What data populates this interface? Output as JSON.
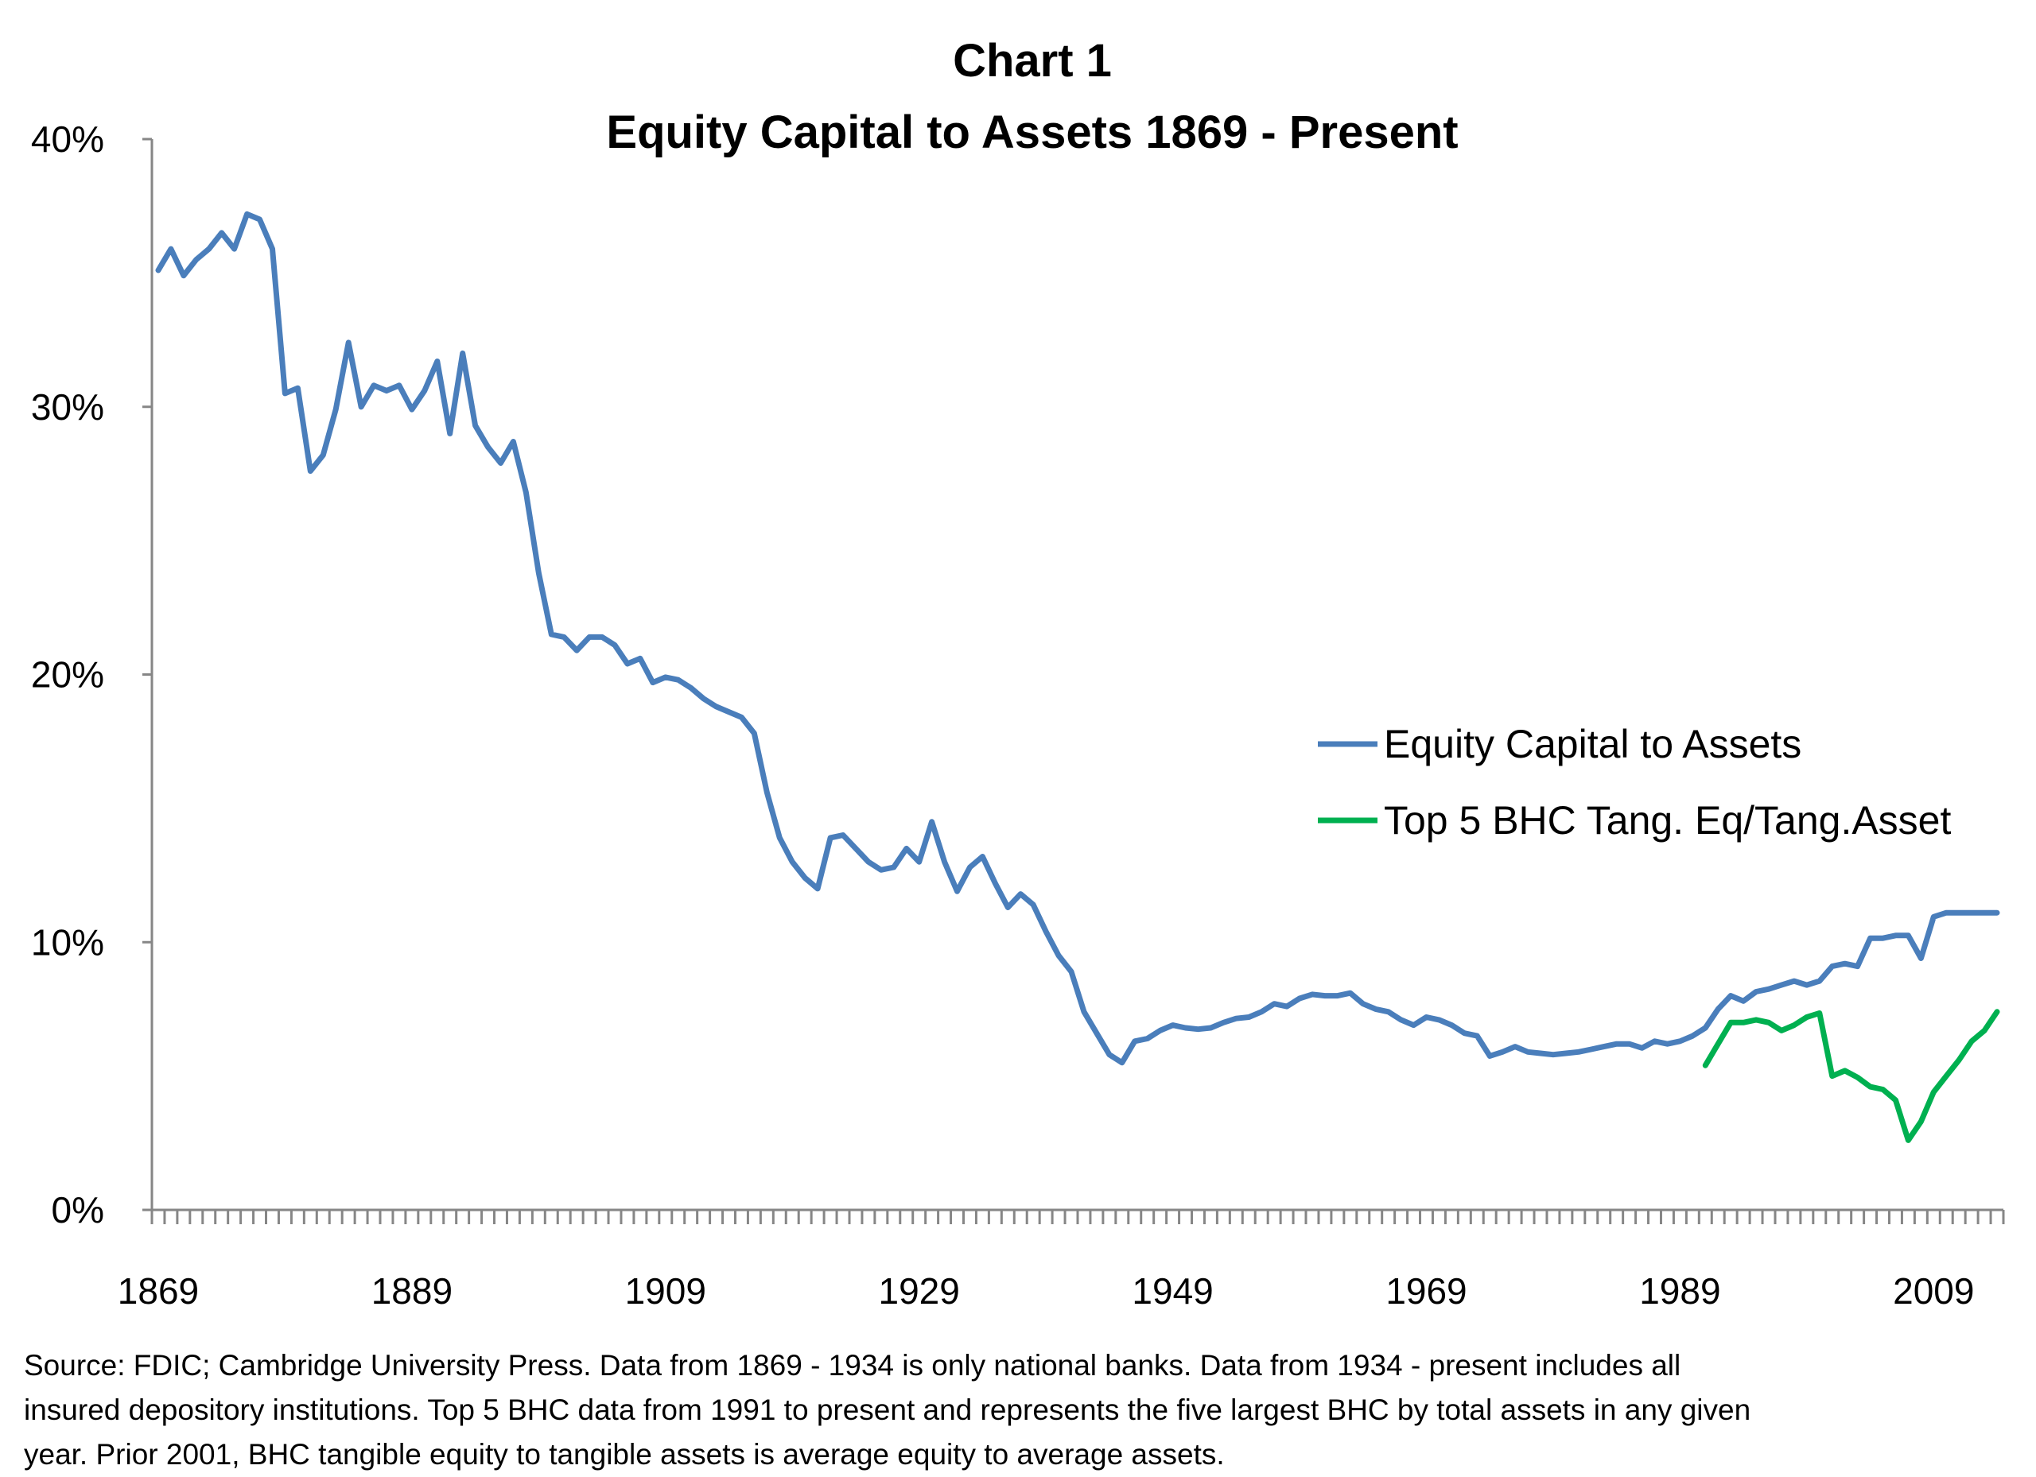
{
  "chart_data": {
    "type": "line",
    "title": "Chart 1",
    "subtitle": "Equity Capital to Assets  1869 - Present",
    "xlabel": "",
    "ylabel": "",
    "ylim": [
      0,
      40
    ],
    "yticks": [
      "0%",
      "10%",
      "20%",
      "30%",
      "40%"
    ],
    "ytick_values": [
      0,
      10,
      20,
      30,
      40
    ],
    "xticks": [
      "1869",
      "1889",
      "1909",
      "1929",
      "1949",
      "1969",
      "1989",
      "2009"
    ],
    "x_start": 1869,
    "x_end": 2014,
    "grid": false,
    "legend_position": "right",
    "series": [
      {
        "name": "Equity Capital to Assets",
        "color": "#4A7EBB",
        "start_year": 1869,
        "values": [
          35.1,
          35.9,
          34.9,
          35.5,
          35.9,
          36.5,
          35.9,
          37.2,
          37.0,
          35.9,
          30.5,
          30.7,
          27.6,
          28.2,
          29.9,
          32.4,
          30.0,
          30.8,
          30.6,
          30.8,
          29.9,
          30.6,
          31.7,
          29.0,
          32.0,
          29.3,
          28.5,
          27.9,
          28.7,
          26.8,
          23.8,
          21.5,
          21.4,
          20.9,
          21.4,
          21.4,
          21.1,
          20.4,
          20.6,
          19.7,
          19.9,
          19.8,
          19.5,
          19.1,
          18.8,
          18.6,
          18.4,
          17.8,
          15.6,
          13.9,
          13.0,
          12.4,
          12.0,
          13.9,
          14.0,
          13.5,
          13.0,
          12.7,
          12.8,
          13.5,
          13.0,
          14.5,
          13.0,
          11.9,
          12.8,
          13.2,
          12.2,
          11.3,
          11.8,
          11.4,
          10.4,
          9.5,
          8.9,
          7.4,
          6.6,
          5.8,
          5.5,
          6.3,
          6.4,
          6.7,
          6.9,
          6.8,
          6.75,
          6.8,
          7.0,
          7.15,
          7.2,
          7.4,
          7.7,
          7.6,
          7.9,
          8.05,
          8.0,
          8.0,
          8.1,
          7.7,
          7.5,
          7.4,
          7.1,
          6.9,
          7.2,
          7.1,
          6.9,
          6.6,
          6.5,
          5.75,
          5.9,
          6.1,
          5.9,
          5.85,
          5.8,
          5.85,
          5.9,
          6.0,
          6.1,
          6.2,
          6.2,
          6.05,
          6.3,
          6.2,
          6.3,
          6.5,
          6.8,
          7.5,
          8.0,
          7.8,
          8.15,
          8.25,
          8.4,
          8.55,
          8.4,
          8.55,
          9.1,
          9.2,
          9.1,
          10.15,
          10.15,
          10.25,
          10.25,
          9.4,
          10.95,
          11.1,
          11.1,
          11.1,
          11.1,
          11.1
        ]
      },
      {
        "name": "Top 5 BHC Tang. Eq/Tang.Asset",
        "color": "#00B050",
        "start_year": 1991,
        "values": [
          5.4,
          6.2,
          7.0,
          7.0,
          7.1,
          7.0,
          6.7,
          6.9,
          7.2,
          7.35,
          5.0,
          5.2,
          4.95,
          4.6,
          4.5,
          4.1,
          2.6,
          3.3,
          4.4,
          5.0,
          5.6,
          6.3,
          6.7,
          7.4
        ]
      }
    ]
  },
  "source": {
    "lines": [
      "Source:  FDIC; Cambridge University Press.  Data from 1869 - 1934 is only national banks.  Data from 1934 - present includes all",
      "insured depository institutions.   Top 5 BHC data from 1991 to present and represents the five largest BHC by total  assets in any given",
      "year.   Prior 2001, BHC tangible equity to tangible assets is average equity to average assets."
    ]
  }
}
